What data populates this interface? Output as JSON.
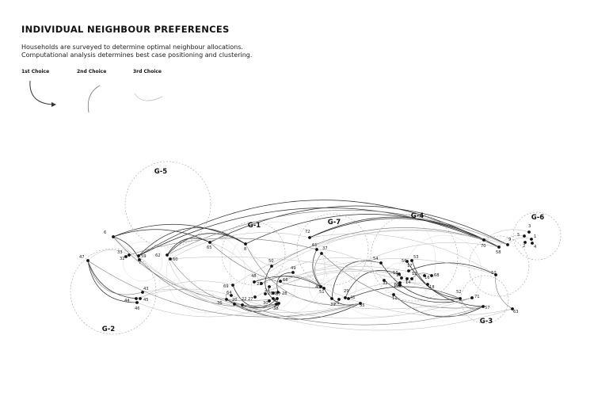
{
  "title": "INDIVIDUAL NEIGHBOUR PREFERENCES",
  "subtitle_lines": [
    "Households are surveyed to determine optimal neighbour allocations.",
    "Computational analysis determines best case positioning and clustering."
  ],
  "legend": [
    {
      "label": "1st Choice",
      "style": "strong"
    },
    {
      "label": "2nd Choice",
      "style": "medium"
    },
    {
      "label": "3rd Choice",
      "style": "light"
    }
  ],
  "colors": {
    "strong": "#333333",
    "medium": "#777777",
    "light": "#b8b8b8",
    "node": "#111111"
  },
  "groups": [
    "G-1",
    "G-2",
    "G-3",
    "G-4",
    "G-5",
    "G-6",
    "G-7"
  ],
  "households": [
    "1",
    "2",
    "3",
    "4",
    "5",
    "6",
    "7",
    "8",
    "9",
    "10",
    "11",
    "12",
    "13",
    "14",
    "15",
    "16",
    "17",
    "18",
    "19",
    "20",
    "21",
    "22",
    "23",
    "24",
    "25",
    "26",
    "27",
    "28",
    "29",
    "30",
    "31",
    "32",
    "33",
    "34",
    "35",
    "36",
    "37",
    "38",
    "39",
    "40",
    "41",
    "42",
    "43",
    "44",
    "45",
    "46",
    "47",
    "48",
    "49",
    "50",
    "51",
    "52",
    "53",
    "54",
    "55",
    "56",
    "57",
    "58",
    "59",
    "60",
    "61",
    "62",
    "63",
    "64",
    "65",
    "66",
    "67",
    "68",
    "69",
    "70",
    "71",
    "72"
  ],
  "node_labels": [
    "1",
    "2",
    "3",
    "4",
    "5",
    "6",
    "7",
    "8",
    "9",
    "10",
    "11",
    "12",
    "13",
    "14",
    "15",
    "16",
    "17",
    "18",
    "19",
    "20",
    "21",
    "22",
    "23",
    "24",
    "25",
    "26",
    "27",
    "28",
    "29",
    "30",
    "31",
    "32",
    "33",
    "34",
    "35",
    "36",
    "37",
    "38",
    "39",
    "40",
    "41",
    "42",
    "43",
    "44",
    "45",
    "46",
    "47",
    "48",
    "49",
    "50",
    "51",
    "52",
    "53",
    "54",
    "55",
    "56",
    "57",
    "58",
    "59",
    "60",
    "61",
    "62",
    "63",
    "64",
    "65",
    "66",
    "67",
    "68",
    "69",
    "70",
    "71",
    "72"
  ]
}
